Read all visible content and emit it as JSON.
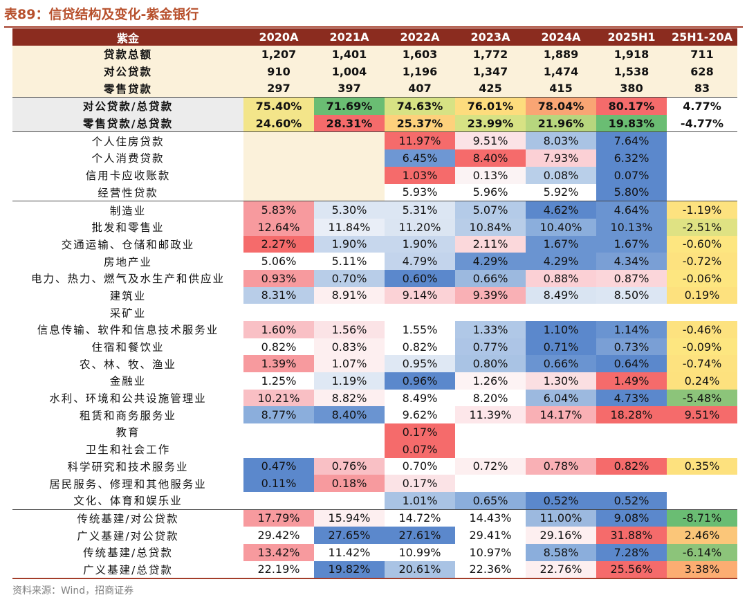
{
  "title": "表89：信贷结构及变化-紫金银行",
  "source": "资料来源：Wind，招商证券",
  "chart_data": {
    "type": "table",
    "columns": [
      "紫金",
      "2020A",
      "2021A",
      "2022A",
      "2023A",
      "2024A",
      "2025H1",
      "25H1-20A"
    ],
    "rows": [
      {
        "label": "贷款总额",
        "values": [
          "1,207",
          "1,401",
          "1,603",
          "1,772",
          "1,889",
          "1,918",
          "711"
        ],
        "colors": [
          "#fbf1da",
          "#fbf1da",
          "#fbf1da",
          "#fbf1da",
          "#fbf1da",
          "#fbf1da",
          "#fbf1da"
        ],
        "bold": true
      },
      {
        "label": "对公贷款",
        "values": [
          "910",
          "1,004",
          "1,196",
          "1,347",
          "1,474",
          "1,538",
          "628"
        ],
        "colors": [
          "#fbf1da",
          "#fbf1da",
          "#fbf1da",
          "#fbf1da",
          "#fbf1da",
          "#fbf1da",
          "#fbf1da"
        ],
        "bold": true
      },
      {
        "label": "零售贷款",
        "values": [
          "297",
          "397",
          "407",
          "425",
          "415",
          "380",
          "83"
        ],
        "colors": [
          "#fbf1da",
          "#fbf1da",
          "#fbf1da",
          "#fbf1da",
          "#fbf1da",
          "#fbf1da",
          "#fbf1da"
        ],
        "bold": true
      },
      {
        "label": "对公贷款/总贷款",
        "values": [
          "75.40%",
          "71.69%",
          "74.63%",
          "76.01%",
          "78.04%",
          "80.17%",
          "4.77%"
        ],
        "colors": [
          "#f3e58a",
          "#6abd73",
          "#d7e284",
          "#fddc7d",
          "#f9a574",
          "#f56b6b",
          "#ffffff"
        ],
        "bold": true,
        "labelBg": "#ececec",
        "sep": true
      },
      {
        "label": "零售贷款/总贷款",
        "values": [
          "24.60%",
          "28.31%",
          "25.37%",
          "23.99%",
          "21.96%",
          "19.83%",
          "-4.77%"
        ],
        "colors": [
          "#f3e58a",
          "#f56b6b",
          "#fdd17c",
          "#d7e284",
          "#b7d67e",
          "#6abd73",
          "#ffffff"
        ],
        "bold": true,
        "labelBg": "#ececec"
      },
      {
        "label": "个人住房贷款",
        "values": [
          "",
          "",
          "11.97%",
          "9.51%",
          "8.03%",
          "7.64%",
          ""
        ],
        "colors": [
          "#fbf1da",
          "#fbf1da",
          "#f56b6b",
          "#fbe3e6",
          "#a9c3e4",
          "#5b88cc",
          "#ffffff"
        ],
        "sep": true
      },
      {
        "label": "个人消费贷款",
        "values": [
          "",
          "",
          "6.45%",
          "8.40%",
          "7.93%",
          "6.32%",
          ""
        ],
        "colors": [
          "#fbf1da",
          "#fbf1da",
          "#6e97d3",
          "#f56b6b",
          "#fbd0d5",
          "#5b88cc",
          "#ffffff"
        ]
      },
      {
        "label": "信用卡应收账款",
        "values": [
          "",
          "",
          "1.03%",
          "0.13%",
          "0.08%",
          "0.07%",
          ""
        ],
        "colors": [
          "#fbf1da",
          "#fbf1da",
          "#f56b6b",
          "#fbf3f4",
          "#b9cfe9",
          "#5b88cc",
          "#ffffff"
        ]
      },
      {
        "label": "经营性贷款",
        "values": [
          "",
          "",
          "5.93%",
          "5.96%",
          "5.92%",
          "5.80%",
          ""
        ],
        "colors": [
          "#fbf1da",
          "#fbf1da",
          "#ffffff",
          "#ffffff",
          "#ffffff",
          "#5b88cc",
          "#ffffff"
        ]
      },
      {
        "label": "制造业",
        "values": [
          "5.83%",
          "5.30%",
          "5.31%",
          "5.07%",
          "4.62%",
          "4.64%",
          "-1.19%"
        ],
        "colors": [
          "#f79a9e",
          "#dce6f3",
          "#dce6f3",
          "#b4cbe8",
          "#5b88cc",
          "#6a94d1",
          "#fde27f"
        ],
        "sep": true
      },
      {
        "label": "批发和零售业",
        "values": [
          "12.64%",
          "11.84%",
          "11.20%",
          "10.84%",
          "10.40%",
          "10.13%",
          "-2.51%"
        ],
        "colors": [
          "#f79a9e",
          "#e9eef7",
          "#dbe5f2",
          "#b8cde8",
          "#8baedc",
          "#6a94d1",
          "#dfe283"
        ]
      },
      {
        "label": "交通运输、仓储和邮政业",
        "values": [
          "2.27%",
          "1.90%",
          "1.90%",
          "2.11%",
          "1.67%",
          "1.67%",
          "-0.60%"
        ],
        "colors": [
          "#f56b6b",
          "#c7d7ed",
          "#c7d7ed",
          "#fbd8db",
          "#6a94d1",
          "#6a94d1",
          "#fde680"
        ]
      },
      {
        "label": "房地产业",
        "values": [
          "5.06%",
          "5.11%",
          "4.79%",
          "4.29%",
          "4.29%",
          "4.34%",
          "-0.72%"
        ],
        "colors": [
          "#ffffff",
          "#ffffff",
          "#c3d4ec",
          "#6a94d1",
          "#6a94d1",
          "#7a9fd5",
          "#fde27f"
        ]
      },
      {
        "label": "电力、热力、燃气及水生产和供应业",
        "values": [
          "0.93%",
          "0.70%",
          "0.60%",
          "0.66%",
          "0.88%",
          "0.87%",
          "-0.06%"
        ],
        "colors": [
          "#f79a9e",
          "#b8cde8",
          "#5b88cc",
          "#9cb9df",
          "#fbd0d5",
          "#fbd6da",
          "#fde680"
        ]
      },
      {
        "label": "建筑业",
        "values": [
          "8.31%",
          "8.91%",
          "9.14%",
          "9.39%",
          "8.49%",
          "8.50%",
          "0.19%"
        ],
        "colors": [
          "#b8cde8",
          "#fdeff0",
          "#fbd2d6",
          "#f9b0b5",
          "#d9e4f2",
          "#dce6f3",
          "#fde17e"
        ]
      },
      {
        "label": "采矿业",
        "values": [
          "",
          "",
          "",
          "",
          "",
          "",
          ""
        ],
        "colors": [
          "#ffffff",
          "#ffffff",
          "#ffffff",
          "#ffffff",
          "#ffffff",
          "#ffffff",
          "#ffffff"
        ]
      },
      {
        "label": "信息传输、软件和信息技术服务业",
        "values": [
          "1.60%",
          "1.56%",
          "1.55%",
          "1.33%",
          "1.10%",
          "1.14%",
          "-0.46%"
        ],
        "colors": [
          "#f9c0c5",
          "#fbe3e6",
          "#ffffff",
          "#b0c8e7",
          "#5b88cc",
          "#6a94d1",
          "#fde27f"
        ]
      },
      {
        "label": "住宿和餐饮业",
        "values": [
          "0.82%",
          "0.83%",
          "0.82%",
          "0.77%",
          "0.71%",
          "0.73%",
          "-0.09%"
        ],
        "colors": [
          "#ffffff",
          "#fdeff0",
          "#ffffff",
          "#adc5e6",
          "#5b88cc",
          "#7a9fd5",
          "#fde680"
        ]
      },
      {
        "label": "农、林、牧、渔业",
        "values": [
          "1.39%",
          "1.07%",
          "0.95%",
          "0.80%",
          "0.66%",
          "0.64%",
          "-0.74%"
        ],
        "colors": [
          "#f79a9e",
          "#fdeff0",
          "#dfe8f4",
          "#a9c3e4",
          "#6a94d1",
          "#5b88cc",
          "#fde27f"
        ]
      },
      {
        "label": "金融业",
        "values": [
          "1.25%",
          "1.19%",
          "0.96%",
          "1.26%",
          "1.30%",
          "1.49%",
          "0.24%"
        ],
        "colors": [
          "#ffffff",
          "#dfe8f4",
          "#5b88cc",
          "#fdf3f4",
          "#fbdfe2",
          "#f56b6b",
          "#fde17e"
        ]
      },
      {
        "label": "水利、环境和公共设施管理业",
        "values": [
          "10.21%",
          "8.82%",
          "8.49%",
          "8.20%",
          "6.04%",
          "4.73%",
          "-5.48%"
        ],
        "colors": [
          "#f9bfc4",
          "#fdeff0",
          "#ffffff",
          "#ffffff",
          "#9cb9df",
          "#5b88cc",
          "#8cc47a"
        ]
      },
      {
        "label": "租赁和商务服务业",
        "values": [
          "8.77%",
          "8.40%",
          "9.62%",
          "11.39%",
          "14.17%",
          "18.28%",
          "9.51%"
        ],
        "colors": [
          "#8baedc",
          "#6a94d1",
          "#ffffff",
          "#fde7ea",
          "#f9b0b5",
          "#f56b6b",
          "#f56b6b"
        ]
      },
      {
        "label": "教育",
        "values": [
          "",
          "",
          "0.17%",
          "",
          "",
          "",
          ""
        ],
        "colors": [
          "#ffffff",
          "#ffffff",
          "#f56b6b",
          "#ffffff",
          "#ffffff",
          "#ffffff",
          "#ffffff"
        ]
      },
      {
        "label": "卫生和社会工作",
        "values": [
          "",
          "",
          "0.07%",
          "",
          "",
          "",
          ""
        ],
        "colors": [
          "#ffffff",
          "#ffffff",
          "#f56b6b",
          "#ffffff",
          "#ffffff",
          "#ffffff",
          "#ffffff"
        ]
      },
      {
        "label": "科学研究和技术服务业",
        "values": [
          "0.47%",
          "0.76%",
          "0.70%",
          "0.72%",
          "0.78%",
          "0.82%",
          "0.35%"
        ],
        "colors": [
          "#5b88cc",
          "#f9c0c5",
          "#ffffff",
          "#fdeff0",
          "#f9b0b5",
          "#f56b6b",
          "#fde17e"
        ]
      },
      {
        "label": "居民服务、修理和其他服务业",
        "values": [
          "0.11%",
          "0.18%",
          "0.17%",
          "",
          "",
          "",
          ""
        ],
        "colors": [
          "#5b88cc",
          "#f79a9e",
          "#fbe3e6",
          "#ffffff",
          "#ffffff",
          "#ffffff",
          "#ffffff"
        ]
      },
      {
        "label": "文化、体育和娱乐业",
        "values": [
          "",
          "",
          "1.01%",
          "0.65%",
          "0.52%",
          "0.52%",
          ""
        ],
        "colors": [
          "#ffffff",
          "#ffffff",
          "#a9c3e4",
          "#8baedc",
          "#5b88cc",
          "#5b88cc",
          "#ffffff"
        ]
      },
      {
        "label": "传统基建/对公贷款",
        "values": [
          "17.79%",
          "15.94%",
          "14.72%",
          "14.43%",
          "11.00%",
          "9.08%",
          "-8.71%"
        ],
        "colors": [
          "#f79a9e",
          "#fdeff0",
          "#ffffff",
          "#ffffff",
          "#9cb9df",
          "#5b88cc",
          "#6abd73"
        ],
        "sep": true
      },
      {
        "label": "广义基建/对公贷款",
        "values": [
          "29.42%",
          "27.65%",
          "27.61%",
          "29.41%",
          "29.16%",
          "31.88%",
          "2.46%"
        ],
        "colors": [
          "#ffffff",
          "#5b88cc",
          "#5b88cc",
          "#ffffff",
          "#fdeff0",
          "#f56b6b",
          "#fbc679"
        ]
      },
      {
        "label": "传统基建/总贷款",
        "values": [
          "13.42%",
          "11.42%",
          "10.99%",
          "10.97%",
          "8.58%",
          "7.28%",
          "-6.14%"
        ],
        "colors": [
          "#f79a9e",
          "#ffffff",
          "#ffffff",
          "#ffffff",
          "#8baedc",
          "#5b88cc",
          "#8cc47a"
        ]
      },
      {
        "label": "广义基建/总贷款",
        "values": [
          "22.19%",
          "19.82%",
          "20.61%",
          "22.36%",
          "22.76%",
          "25.56%",
          "3.38%"
        ],
        "colors": [
          "#ffffff",
          "#5b88cc",
          "#a9c3e4",
          "#ffffff",
          "#fdeff0",
          "#f56b6b",
          "#fcad72"
        ],
        "last": true
      }
    ]
  }
}
